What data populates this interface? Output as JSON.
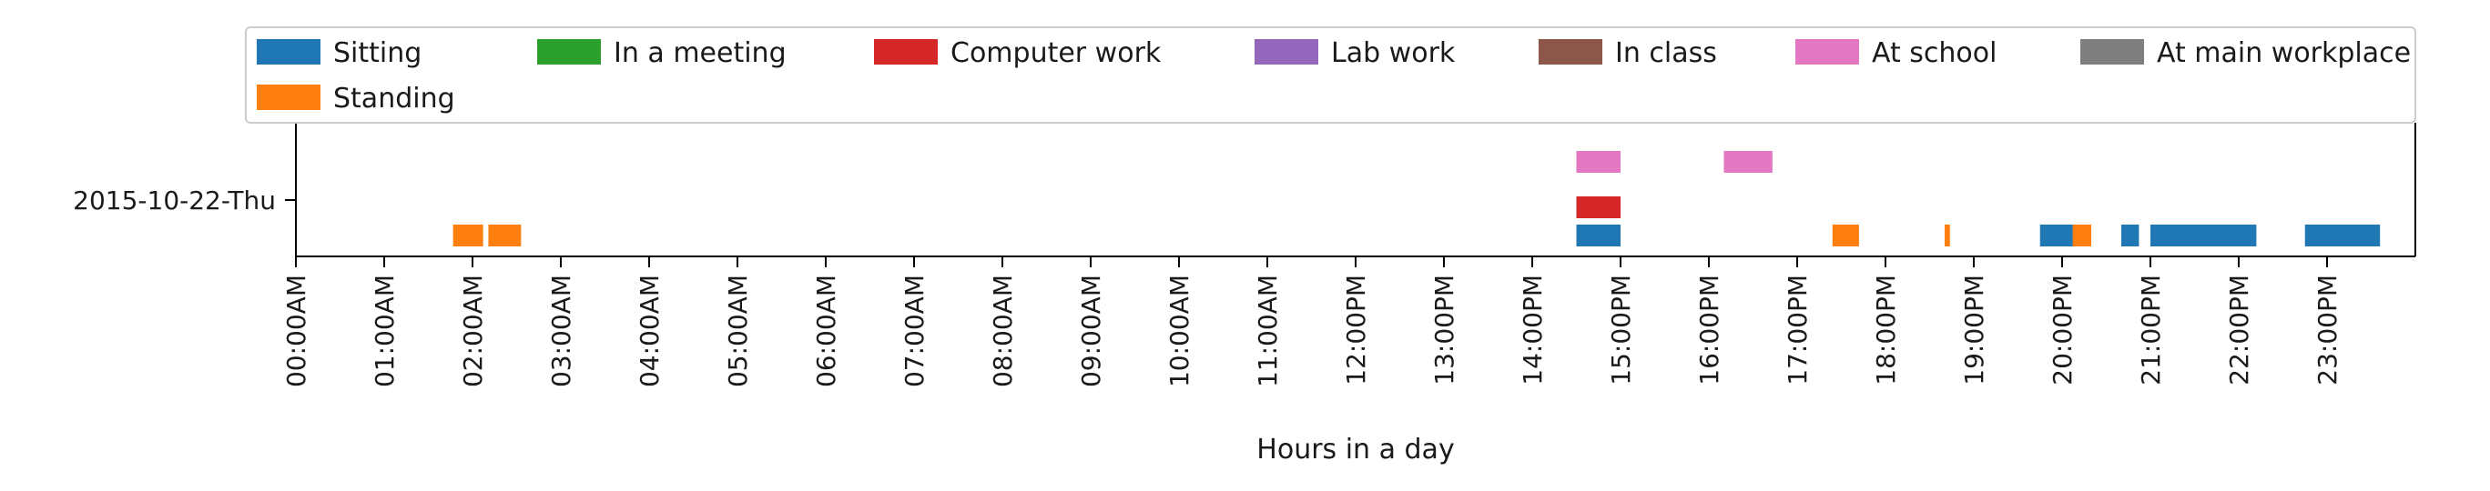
{
  "chart_data": {
    "type": "timeline",
    "xlabel": "Hours in a day",
    "ylabel": "",
    "xlim": [
      0,
      24
    ],
    "y_categories": [
      "2015-10-22-Thu"
    ],
    "x_ticks": [
      {
        "value": 0,
        "label": "00:00AM"
      },
      {
        "value": 1,
        "label": "01:00AM"
      },
      {
        "value": 2,
        "label": "02:00AM"
      },
      {
        "value": 3,
        "label": "03:00AM"
      },
      {
        "value": 4,
        "label": "04:00AM"
      },
      {
        "value": 5,
        "label": "05:00AM"
      },
      {
        "value": 6,
        "label": "06:00AM"
      },
      {
        "value": 7,
        "label": "07:00AM"
      },
      {
        "value": 8,
        "label": "08:00AM"
      },
      {
        "value": 9,
        "label": "09:00AM"
      },
      {
        "value": 10,
        "label": "10:00AM"
      },
      {
        "value": 11,
        "label": "11:00AM"
      },
      {
        "value": 12,
        "label": "12:00PM"
      },
      {
        "value": 13,
        "label": "13:00PM"
      },
      {
        "value": 14,
        "label": "14:00PM"
      },
      {
        "value": 15,
        "label": "15:00PM"
      },
      {
        "value": 16,
        "label": "16:00PM"
      },
      {
        "value": 17,
        "label": "17:00PM"
      },
      {
        "value": 18,
        "label": "18:00PM"
      },
      {
        "value": 19,
        "label": "19:00PM"
      },
      {
        "value": 20,
        "label": "20:00PM"
      },
      {
        "value": 21,
        "label": "21:00PM"
      },
      {
        "value": 22,
        "label": "22:00PM"
      },
      {
        "value": 23,
        "label": "23:00PM"
      }
    ],
    "legend_placement": "top, spanning width, 7 columns",
    "series": [
      {
        "name": "Sitting",
        "color": "#1f77b4",
        "segments": [
          [
            14.5,
            15.0
          ],
          [
            19.75,
            20.15
          ],
          [
            20.67,
            20.87
          ],
          [
            21.0,
            22.2
          ],
          [
            22.75,
            23.6
          ]
        ]
      },
      {
        "name": "Standing",
        "color": "#ff7f0e",
        "segments": [
          [
            1.78,
            2.12
          ],
          [
            2.18,
            2.55
          ],
          [
            17.4,
            17.7
          ],
          [
            18.67,
            18.73
          ],
          [
            20.12,
            20.33
          ]
        ]
      },
      {
        "name": "In a meeting",
        "color": "#2ca02c",
        "segments": []
      },
      {
        "name": "Computer work",
        "color": "#d62728",
        "segments": [
          [
            14.5,
            15.0
          ]
        ]
      },
      {
        "name": "Lab work",
        "color": "#9467bd",
        "segments": []
      },
      {
        "name": "In class",
        "color": "#8c564b",
        "segments": []
      },
      {
        "name": "At school",
        "color": "#e377c2",
        "segments": [
          [
            14.5,
            15.0
          ],
          [
            16.17,
            16.72
          ]
        ]
      },
      {
        "name": "At main workplace",
        "color": "#7f7f7f",
        "segments": []
      }
    ]
  }
}
